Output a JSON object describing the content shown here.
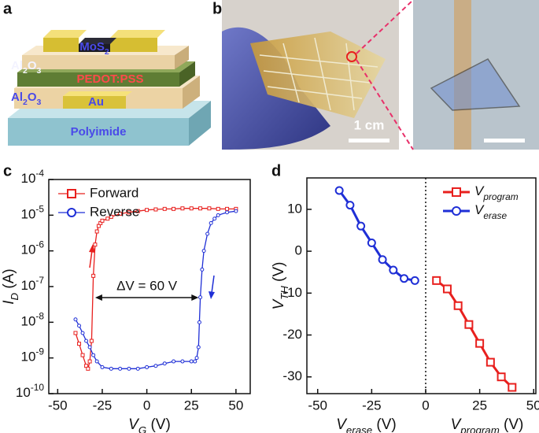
{
  "panel_labels": [
    "a",
    "b",
    "c",
    "d"
  ],
  "schematic": {
    "layers": [
      "MoS2",
      "Al2O3",
      "PEDOT:PSS",
      "Al2O3",
      "Au",
      "Polyimide"
    ]
  },
  "photo": {
    "scale_bar": "1 cm"
  },
  "chart_data": [
    {
      "type": "line",
      "yscale": "log",
      "xlabel": "VG (V)",
      "ylabel": "ID (A)",
      "xlim": [
        -55,
        58
      ],
      "ylim": [
        1e-10,
        0.0001
      ],
      "xticks": [
        -50,
        -25,
        0,
        25,
        50
      ],
      "yticks": [
        {
          "value": 1e-10,
          "label": "10-10"
        },
        {
          "value": 1e-09,
          "label": "10-9"
        },
        {
          "value": 1e-08,
          "label": "10-8"
        },
        {
          "value": 1e-07,
          "label": "10-7"
        },
        {
          "value": 1e-06,
          "label": "10-6"
        },
        {
          "value": 1e-05,
          "label": "10-5"
        },
        {
          "value": 0.0001,
          "label": "10-4"
        }
      ],
      "legend": "upper left",
      "annotation": "ΔV = 60 V",
      "series": [
        {
          "name": "Forward",
          "color": "#e8201e",
          "marker": "square",
          "x": [
            -40,
            -38,
            -36,
            -34,
            -33,
            -32,
            -31,
            -30,
            -29,
            -28,
            -27,
            -26,
            -25,
            -22,
            -20,
            -15,
            -10,
            -5,
            0,
            5,
            10,
            15,
            20,
            25,
            30,
            35,
            40,
            45,
            50
          ],
          "values": [
            5e-09,
            2.5e-09,
            1.2e-09,
            6e-10,
            5e-10,
            8e-10,
            3e-09,
            2e-07,
            1.5e-06,
            3.5e-06,
            5e-06,
            6e-06,
            7e-06,
            8e-06,
            9e-06,
            1.1e-05,
            1.2e-05,
            1.3e-05,
            1.4e-05,
            1.45e-05,
            1.5e-05,
            1.5e-05,
            1.55e-05,
            1.55e-05,
            1.55e-05,
            1.55e-05,
            1.5e-05,
            1.5e-05,
            1.5e-05
          ]
        },
        {
          "name": "Reverse",
          "color": "#1f2fd6",
          "marker": "circle",
          "x": [
            50,
            45,
            40,
            38,
            36,
            34,
            32,
            31,
            30,
            29.5,
            29,
            28,
            27,
            25,
            20,
            15,
            10,
            5,
            0,
            -5,
            -10,
            -15,
            -20,
            -25,
            -28,
            -30,
            -32,
            -34,
            -36,
            -38,
            -40
          ],
          "values": [
            1.3e-05,
            1.2e-05,
            1e-05,
            8e-06,
            6e-06,
            3e-06,
            1e-06,
            3e-07,
            5e-08,
            1e-08,
            2e-09,
            1e-09,
            8e-10,
            8e-10,
            8e-10,
            8e-10,
            7e-10,
            6e-10,
            5.5e-10,
            5e-10,
            5e-10,
            5e-10,
            5e-10,
            5.5e-10,
            8e-10,
            1.2e-09,
            2e-09,
            3e-09,
            5e-09,
            8e-09,
            1.2e-08
          ]
        }
      ]
    },
    {
      "type": "line",
      "xlabels": [
        "Verase (V)",
        "Vprogram (V)"
      ],
      "ylabel": "VTH (V)",
      "xlim": [
        -55,
        51
      ],
      "ylim": [
        -34,
        17.5
      ],
      "xticks": [
        -50,
        -25,
        0,
        25,
        50
      ],
      "yticks": [
        -30,
        -20,
        -10,
        0,
        10
      ],
      "legend": "upper right",
      "series": [
        {
          "name": "Vprogram",
          "color": "#e8201e",
          "marker": "square",
          "x": [
            5,
            10,
            15,
            20,
            25,
            30,
            35,
            40
          ],
          "values": [
            -7,
            -9,
            -13,
            -17.5,
            -22,
            -26.5,
            -30,
            -32.5
          ]
        },
        {
          "name": "Verase",
          "color": "#1f2fd6",
          "marker": "circle",
          "x": [
            -40,
            -35,
            -30,
            -25,
            -20,
            -15,
            -10,
            -5
          ],
          "values": [
            14.5,
            11,
            6,
            2,
            -2,
            -4.5,
            -6.5,
            -7
          ]
        }
      ]
    }
  ]
}
